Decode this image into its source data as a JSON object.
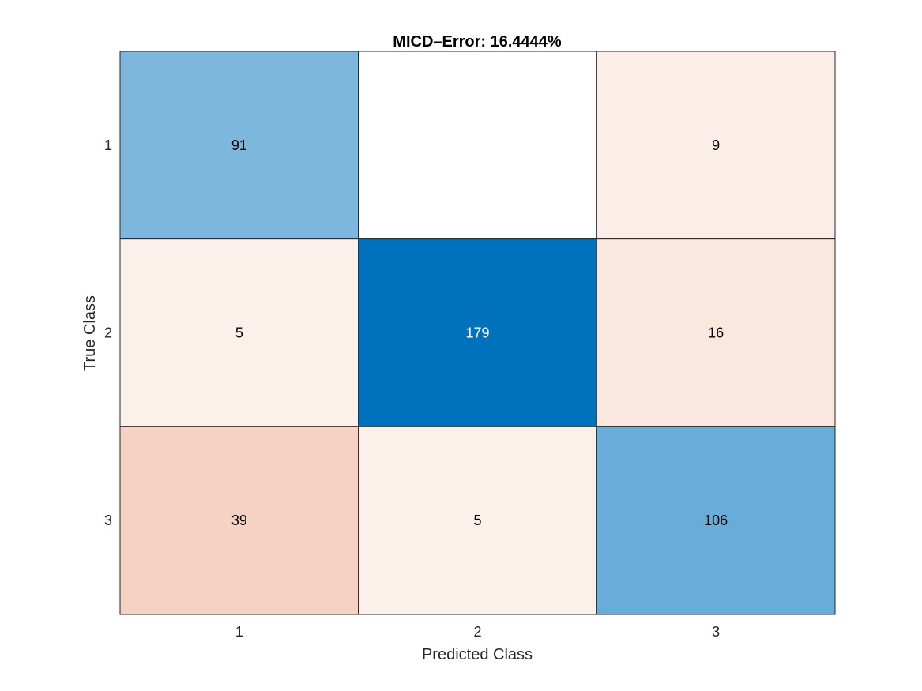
{
  "chart_data": {
    "type": "heatmap",
    "title": "MICD–Error:  16.4444%",
    "xlabel": "Predicted Class",
    "ylabel": "True Class",
    "x_categories": [
      "1",
      "2",
      "3"
    ],
    "y_categories": [
      "1",
      "2",
      "3"
    ],
    "matrix": [
      [
        91,
        0,
        9
      ],
      [
        5,
        179,
        16
      ],
      [
        39,
        5,
        106
      ]
    ],
    "blank_zero_cells": true,
    "grid": false,
    "colors": {
      "diagonal": "#0072bd",
      "off_diagonal": "#d95319",
      "blank": "#ffffff",
      "text_dark": "#000000",
      "text_light": "#ffffff"
    }
  }
}
